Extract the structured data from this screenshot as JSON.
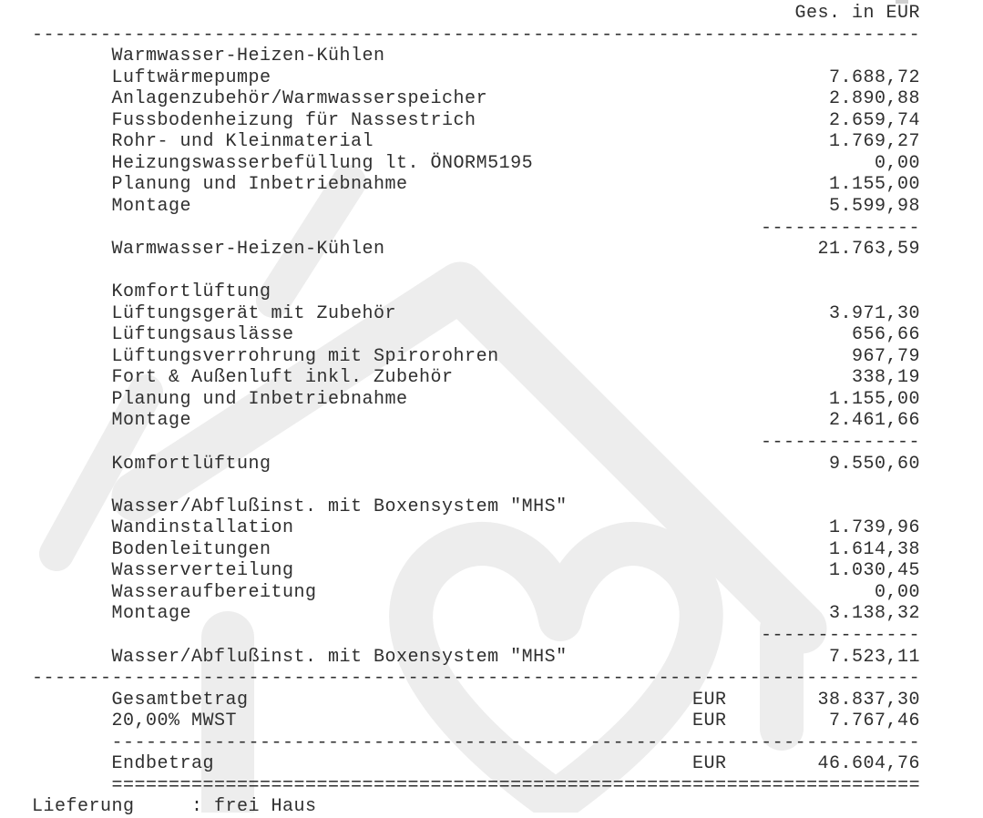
{
  "header": {
    "amount_column_label": "Ges. in EUR"
  },
  "sections": [
    {
      "title": "Warmwasser-Heizen-Kühlen",
      "items": [
        {
          "label": "Luftwärmepumpe",
          "value": "7.688,72"
        },
        {
          "label": "Anlagenzubehör/Warmwasserspeicher",
          "value": "2.890,88"
        },
        {
          "label": "Fussbodenheizung für Nassestrich",
          "value": "2.659,74"
        },
        {
          "label": "Rohr- und Kleinmaterial",
          "value": "1.769,27"
        },
        {
          "label": "Heizungswasserbefüllung lt. ÖNORM5195",
          "value": "0,00"
        },
        {
          "label": "Planung und Inbetriebnahme",
          "value": "1.155,00"
        },
        {
          "label": "Montage",
          "value": "5.599,98"
        }
      ],
      "subtotal": {
        "label": "Warmwasser-Heizen-Kühlen",
        "value": "21.763,59"
      }
    },
    {
      "title": "Komfortlüftung",
      "items": [
        {
          "label": "Lüftungsgerät mit Zubehör",
          "value": "3.971,30"
        },
        {
          "label": "Lüftungsauslässe",
          "value": "656,66"
        },
        {
          "label": "Lüftungsverrohrung mit Spirorohren",
          "value": "967,79"
        },
        {
          "label": "Fort & Außenluft inkl. Zubehör",
          "value": "338,19"
        },
        {
          "label": "Planung und Inbetriebnahme",
          "value": "1.155,00"
        },
        {
          "label": "Montage",
          "value": "2.461,66"
        }
      ],
      "subtotal": {
        "label": "Komfortlüftung",
        "value": "9.550,60"
      }
    },
    {
      "title": "Wasser/Abflußinst. mit Boxensystem \"MHS\"",
      "items": [
        {
          "label": "Wandinstallation",
          "value": "1.739,96"
        },
        {
          "label": "Bodenleitungen",
          "value": "1.614,38"
        },
        {
          "label": "Wasserverteilung",
          "value": "1.030,45"
        },
        {
          "label": "Wasseraufbereitung",
          "value": "0,00"
        },
        {
          "label": "Montage",
          "value": "3.138,32"
        }
      ],
      "subtotal": {
        "label": "Wasser/Abflußinst. mit Boxensystem \"MHS\"",
        "value": "7.523,11"
      }
    }
  ],
  "totals": {
    "rows": [
      {
        "label": "Gesamtbetrag",
        "currency": "EUR",
        "value": "38.837,30"
      },
      {
        "label": "20,00% MWST",
        "currency": "EUR",
        "value": "7.767,46"
      }
    ],
    "final": {
      "label": "Endbetrag",
      "currency": "EUR",
      "value": "46.604,76"
    }
  },
  "footer": {
    "label": "Lieferung",
    "value": "frei Haus"
  },
  "colors": {
    "text": "#2f2f2f",
    "watermark": "#ededed",
    "background": "#ffffff"
  }
}
